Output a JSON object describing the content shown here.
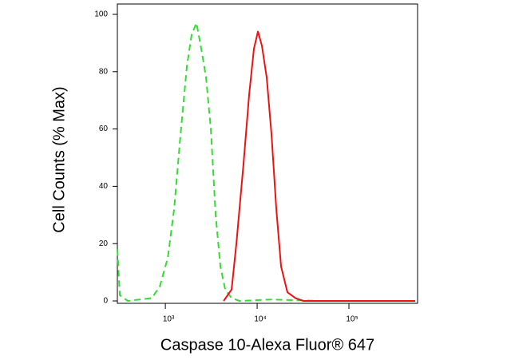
{
  "chart_data": {
    "type": "line",
    "xlabel": "Caspase 10-Alexa Fluor® 647",
    "ylabel": "Cell Counts (% Max)",
    "xscale": "log",
    "xlim": [
      300,
      560000
    ],
    "ylim": [
      0,
      100
    ],
    "xticks": [
      {
        "value": 1000,
        "label": "10³"
      },
      {
        "value": 10000,
        "label": "10⁴"
      },
      {
        "value": 100000,
        "label": "10⁵"
      }
    ],
    "yticks": [
      0,
      20,
      40,
      60,
      80,
      100
    ],
    "series": [
      {
        "color": "#33dd33",
        "dash": true,
        "x": [
          300,
          319,
          390,
          711,
          869,
          1062,
          1246,
          1463,
          1718,
          1936,
          2183,
          2461,
          2774,
          3130,
          3531,
          3981,
          4487,
          5272,
          6442,
          14350,
          47640,
          527000
        ],
        "values": [
          18,
          2,
          0,
          1,
          5,
          15,
          32,
          58,
          82,
          93,
          97,
          88,
          78,
          60,
          30,
          12,
          4,
          1,
          0,
          0.5,
          0,
          0
        ]
      },
      {
        "color": "#ee1111",
        "dash": false,
        "x": [
          4315,
          5272,
          5940,
          7113,
          8185,
          9226,
          10210,
          11280,
          12710,
          14350,
          16180,
          18240,
          21390,
          26140,
          31900,
          527000
        ],
        "values": [
          0,
          4,
          20,
          48,
          72,
          88,
          94,
          89,
          78,
          58,
          32,
          12,
          3,
          1,
          0,
          0
        ]
      }
    ]
  }
}
